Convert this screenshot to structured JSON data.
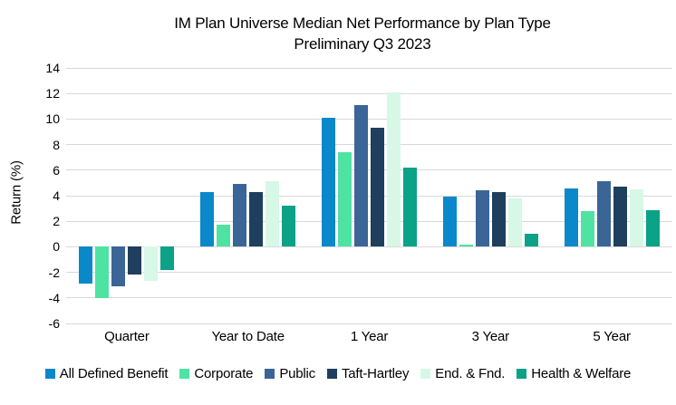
{
  "title": {
    "line1": "IM Plan Universe Median Net Performance by Plan Type",
    "line2": "Preliminary Q3 2023"
  },
  "chart_data": {
    "type": "bar",
    "title": "IM Plan Universe Median Net Performance by Plan Type",
    "subtitle": "Preliminary Q3 2023",
    "categories": [
      "Quarter",
      "Year to Date",
      "1 Year",
      "3 Year",
      "5 Year"
    ],
    "series": [
      {
        "name": "All Defined Benefit",
        "color": "#0a88c9",
        "values": [
          -2.9,
          4.3,
          10.1,
          3.9,
          4.6
        ]
      },
      {
        "name": "Corporate",
        "color": "#4fe3a3",
        "values": [
          -4.0,
          1.7,
          7.4,
          0.2,
          2.8
        ]
      },
      {
        "name": "Public",
        "color": "#3a6596",
        "values": [
          -3.1,
          4.9,
          11.1,
          4.4,
          5.1
        ]
      },
      {
        "name": "Taft-Hartley",
        "color": "#1e3f5e",
        "values": [
          -2.2,
          4.3,
          9.3,
          4.3,
          4.7
        ]
      },
      {
        "name": "End. & Fnd.",
        "color": "#d7f7e7",
        "values": [
          -2.7,
          5.1,
          12.1,
          3.8,
          4.5
        ]
      },
      {
        "name": "Health & Welfare",
        "color": "#0ca287",
        "values": [
          -1.8,
          3.2,
          6.2,
          1.0,
          2.9
        ]
      }
    ],
    "xlabel": "",
    "ylabel": "Return (%)",
    "ylim": [
      -6,
      14
    ],
    "yticks": [
      14,
      12,
      10,
      8,
      6,
      4,
      2,
      0,
      -2,
      -4,
      -6
    ],
    "grid": "horizontal",
    "gridline_color": "#d9d9d9",
    "legend_position": "bottom",
    "background_color": "#ffffff",
    "text_color": "#000000"
  }
}
